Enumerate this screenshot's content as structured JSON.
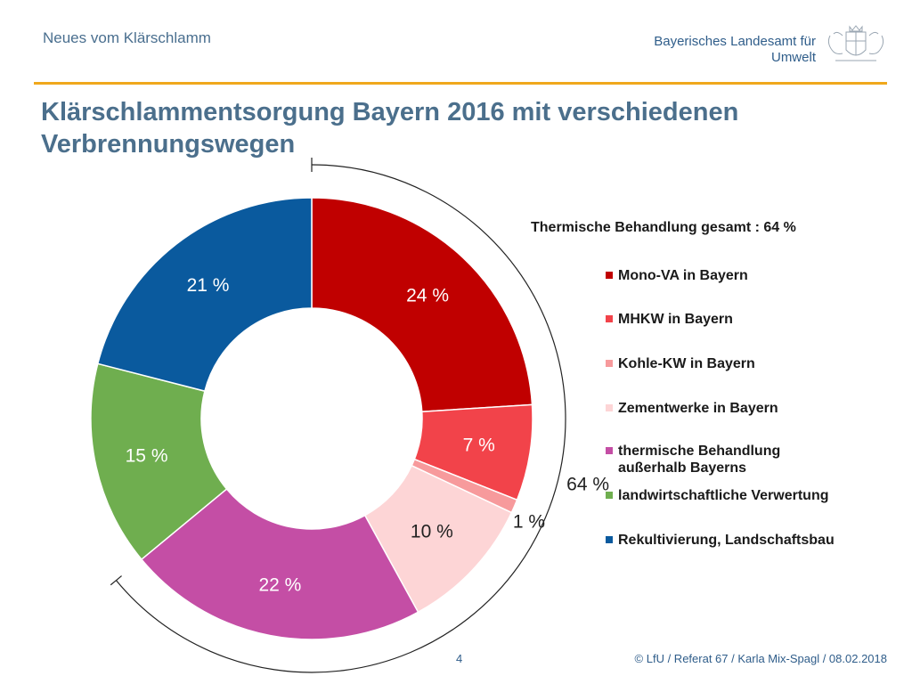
{
  "header": {
    "left_text": "Neues vom Klärschlamm",
    "agency_line1": "Bayerisches Landesamt für",
    "agency_line2": "Umwelt"
  },
  "slide": {
    "title_line1": "Klärschlammentsorgung Bayern 2016 mit verschiedenen",
    "title_line2": "Verbrennungswegen"
  },
  "chart_data": {
    "type": "pie",
    "donut": true,
    "legend_title": "Thermische Behandlung gesamt : 64 %",
    "legend_position": "right",
    "start_angle_deg": 0,
    "slices": [
      {
        "name": "Mono-VA in Bayern",
        "value": 24,
        "label": "24 %",
        "color": "#c00000"
      },
      {
        "name": "MHKW in Bayern",
        "value": 7,
        "label": "7 %",
        "color": "#f2434a"
      },
      {
        "name": "Kohle-KW in Bayern",
        "value": 1,
        "label": "1 %",
        "color": "#f79a9c"
      },
      {
        "name": "Zementwerke in Bayern",
        "value": 10,
        "label": "10 %",
        "color": "#fdd5d6"
      },
      {
        "name": "thermische Behandlung außerhalb Bayerns",
        "value": 22,
        "label": "22 %",
        "color": "#c44ea5"
      },
      {
        "name": "landwirtschaftliche Verwertung",
        "value": 15,
        "label": "15 %",
        "color": "#6fae4f"
      },
      {
        "name": "Rekultivierung, Landschaftsbau",
        "value": 21,
        "label": "21 %",
        "color": "#0a5a9e"
      }
    ],
    "legend_lines": [
      [
        "Mono-VA in Bayern"
      ],
      [
        "MHKW in Bayern"
      ],
      [
        "Kohle-KW in Bayern"
      ],
      [
        "Zementwerke in Bayern"
      ],
      [
        "thermische Behandlung",
        "außerhalb Bayerns"
      ],
      [
        "landwirtschaftliche Verwertung"
      ],
      [
        "Rekultivierung, Landschaftsbau"
      ]
    ],
    "total_bracket": {
      "value": 64,
      "label": "64 %"
    }
  },
  "footer": {
    "page_number": "4",
    "credit": "© LfU / Referat 67 / Karla Mix-Spagl / 08.02.2018"
  }
}
